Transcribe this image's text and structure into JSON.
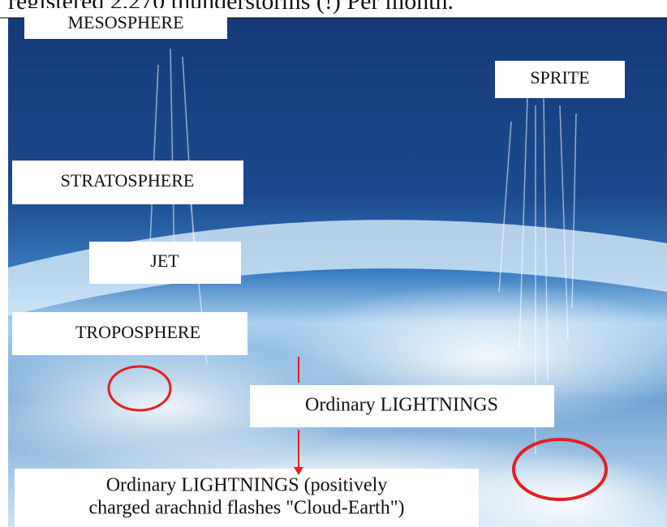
{
  "header": {
    "text": "registered 2,270 thunderstorms (!) Per month."
  },
  "labels": {
    "mesosphere": "MESOSPHERE",
    "sprite": "SPRITE",
    "stratosphere": "STRATOSPHERE",
    "jet": "JET",
    "troposphere": "TROPOSPHERE",
    "ordinary": "Ordinary LIGHTNINGS",
    "positive": [
      "Ordinary LIGHTNINGS (positively",
      "charged arachnid flashes \"Cloud-Earth\")"
    ]
  }
}
